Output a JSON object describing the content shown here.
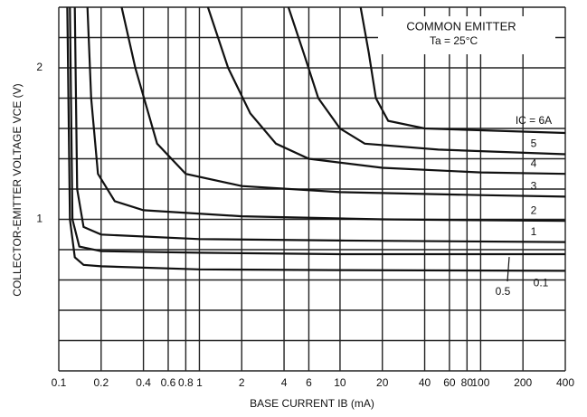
{
  "chart_data": {
    "type": "line",
    "x_label": "BASE CURRENT IB (mA)",
    "y_label": "COLLECTOR-EMITTER VOLTAGE VCE (V)",
    "annotations": [
      "COMMON EMITTER",
      "Ta = 25°C"
    ],
    "x_log": true,
    "xlim": [
      0.1,
      400
    ],
    "xticks": [
      0.1,
      0.2,
      0.4,
      0.6,
      0.8,
      1,
      2,
      4,
      6,
      10,
      20,
      40,
      60,
      80,
      100,
      200,
      400
    ],
    "ylim": [
      0,
      2.4
    ],
    "yticks": [
      1,
      2
    ],
    "ygrid": [
      0,
      0.2,
      0.4,
      0.6,
      0.8,
      1,
      1.2,
      1.4,
      1.6,
      1.8,
      2,
      2.2,
      2.4
    ],
    "grid": true,
    "series": [
      {
        "name": "IC = 6A",
        "color": "#111",
        "x": [
          14,
          16,
          18,
          22,
          40,
          400
        ],
        "values": [
          2.4,
          2.1,
          1.8,
          1.65,
          1.6,
          1.57
        ]
      },
      {
        "name": "5",
        "color": "#111",
        "x": [
          4.3,
          5.5,
          7,
          10,
          15,
          50,
          400
        ],
        "values": [
          2.4,
          2.1,
          1.8,
          1.6,
          1.5,
          1.46,
          1.43
        ]
      },
      {
        "name": "4",
        "color": "#111",
        "x": [
          1.15,
          1.6,
          2.3,
          3.5,
          6,
          20,
          100,
          400
        ],
        "values": [
          2.4,
          2.0,
          1.7,
          1.5,
          1.4,
          1.34,
          1.31,
          1.3
        ]
      },
      {
        "name": "3",
        "color": "#111",
        "x": [
          0.28,
          0.35,
          0.5,
          0.8,
          2,
          10,
          100,
          400
        ],
        "values": [
          2.4,
          2.0,
          1.5,
          1.3,
          1.22,
          1.18,
          1.16,
          1.15
        ]
      },
      {
        "name": "2",
        "color": "#111",
        "x": [
          0.16,
          0.17,
          0.19,
          0.25,
          0.4,
          2,
          20,
          400
        ],
        "values": [
          2.4,
          1.8,
          1.3,
          1.12,
          1.06,
          1.02,
          1.0,
          0.99
        ]
      },
      {
        "name": "1",
        "color": "#111",
        "x": [
          0.13,
          0.135,
          0.15,
          0.2,
          1,
          10,
          400
        ],
        "values": [
          2.4,
          1.2,
          0.95,
          0.9,
          0.87,
          0.86,
          0.85
        ]
      },
      {
        "name": "0.5",
        "color": "#111",
        "x": [
          0.12,
          0.125,
          0.14,
          0.2,
          1,
          10,
          400
        ],
        "values": [
          2.4,
          1.0,
          0.82,
          0.79,
          0.78,
          0.77,
          0.77
        ]
      },
      {
        "name": "0.1",
        "color": "#111",
        "x": [
          0.115,
          0.12,
          0.13,
          0.15,
          0.2,
          1,
          10,
          400
        ],
        "values": [
          2.4,
          1.0,
          0.75,
          0.7,
          0.69,
          0.67,
          0.665,
          0.66
        ]
      }
    ]
  }
}
